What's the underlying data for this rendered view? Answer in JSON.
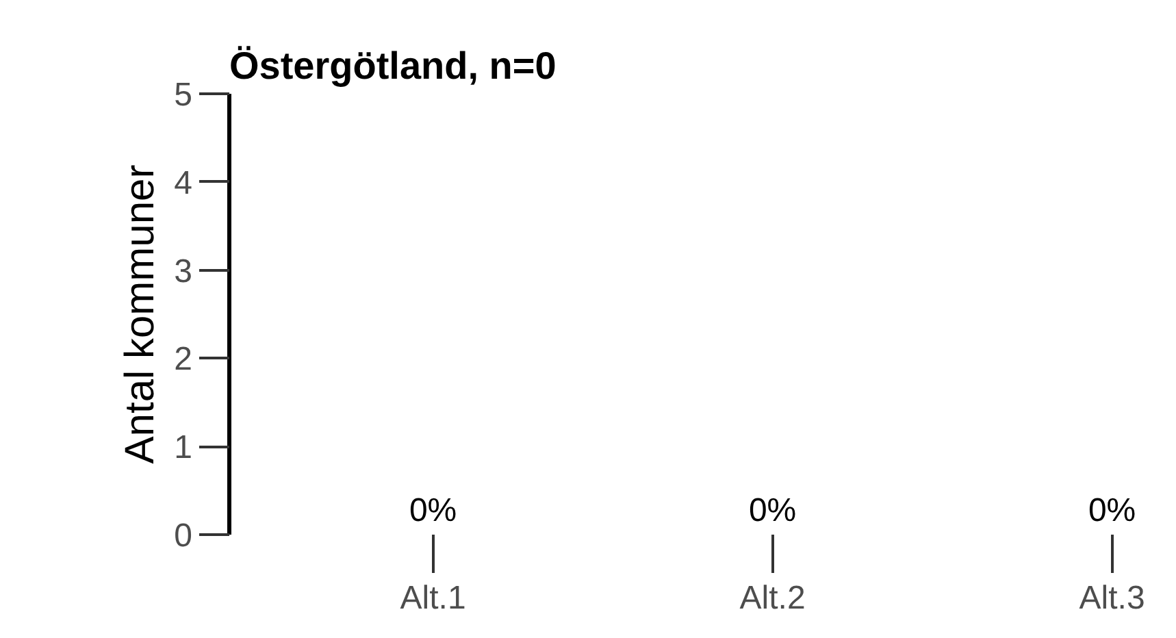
{
  "chart_data": {
    "type": "bar",
    "title": "Östergötland, n=0",
    "ylabel": "Antal kommuner",
    "categories": [
      "Alt.1",
      "Alt.2",
      "Alt.3"
    ],
    "values": [
      0,
      0,
      0
    ],
    "value_labels": [
      "0%",
      "0%",
      "0%"
    ],
    "ylim": [
      0,
      5
    ],
    "yticks": [
      0,
      1,
      2,
      3,
      4,
      5
    ],
    "grid": false
  }
}
